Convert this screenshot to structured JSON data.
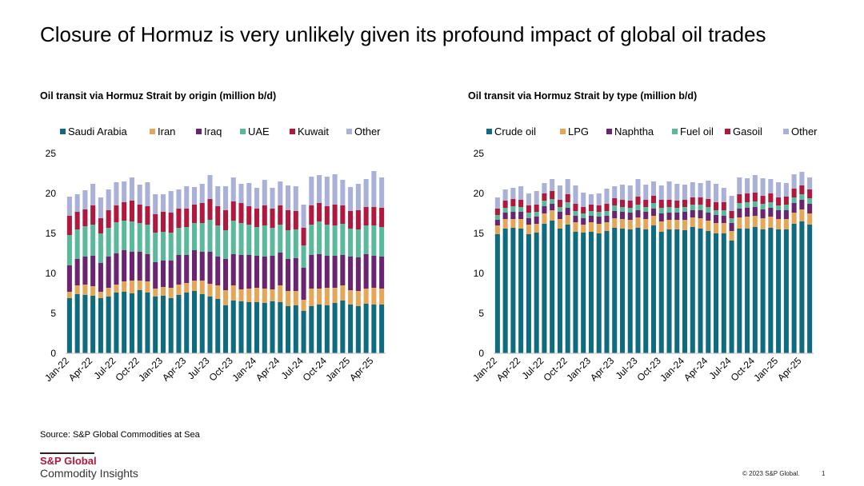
{
  "title": "Closure of Hormuz is very unlikely given its profound impact of global oil trades",
  "source": "Source: S&P Global Commodities at Sea",
  "logo": {
    "brand": "S&P Global",
    "sub": "Commodity Insights"
  },
  "copyright": "© 2023 S&P Global.",
  "page_number": "1",
  "chart_data": [
    {
      "type": "bar",
      "stacked": true,
      "title": "Oil transit via Hormuz Strait by origin (million b/d)",
      "xlabel": "",
      "ylabel": "",
      "ylim": [
        0,
        25
      ],
      "yticks": [
        0,
        5,
        10,
        15,
        20,
        25
      ],
      "legend_position": "top",
      "categories": [
        "Jan-22",
        "Feb-22",
        "Mar-22",
        "Apr-22",
        "May-22",
        "Jun-22",
        "Jul-22",
        "Aug-22",
        "Sep-22",
        "Oct-22",
        "Nov-22",
        "Dec-22",
        "Jan-23",
        "Feb-23",
        "Mar-23",
        "Apr-23",
        "May-23",
        "Jun-23",
        "Jul-23",
        "Aug-23",
        "Sep-23",
        "Oct-23",
        "Nov-23",
        "Dec-23",
        "Jan-24",
        "Feb-24",
        "Mar-24",
        "Apr-24",
        "May-24",
        "Jun-24",
        "Jul-24",
        "Aug-24",
        "Sep-24",
        "Oct-24",
        "Nov-24",
        "Dec-24",
        "Jan-25",
        "Feb-25",
        "Mar-25",
        "Apr-25",
        "May-25"
      ],
      "tick_labels": [
        "Jan-22",
        "Apr-22",
        "Jul-22",
        "Oct-22",
        "Jan-23",
        "Apr-23",
        "Jul-23",
        "Oct-23",
        "Jan-24",
        "Apr-24",
        "Jul-24",
        "Oct-24",
        "Jan-25",
        "Apr-25"
      ],
      "series": [
        {
          "name": "Saudi Arabia",
          "color": "#0f6b80",
          "values": [
            6.9,
            7.4,
            7.3,
            7.2,
            6.9,
            7.1,
            7.6,
            7.7,
            7.5,
            7.9,
            7.6,
            7.1,
            7.2,
            6.9,
            7.3,
            7.6,
            7.8,
            7.4,
            7.1,
            6.8,
            6.0,
            6.6,
            6.5,
            6.4,
            6.4,
            6.3,
            6.5,
            6.4,
            5.9,
            6.0,
            5.3,
            5.9,
            6.1,
            6.0,
            6.3,
            6.6,
            6.1,
            5.9,
            6.2,
            6.1,
            6.1
          ]
        },
        {
          "name": "Iran",
          "color": "#e5a757",
          "values": [
            0.8,
            1.1,
            1.3,
            1.2,
            0.8,
            1.1,
            1.0,
            1.3,
            1.6,
            1.2,
            1.4,
            1.0,
            1.1,
            1.3,
            1.3,
            1.2,
            1.3,
            1.7,
            1.6,
            1.7,
            1.9,
            1.9,
            1.5,
            1.7,
            1.8,
            1.8,
            1.5,
            2.1,
            1.9,
            1.8,
            1.4,
            2.2,
            2.0,
            2.2,
            1.9,
            1.9,
            1.8,
            1.9,
            1.9,
            2.1,
            2.0
          ]
        },
        {
          "name": "Iraq",
          "color": "#6b2471",
          "values": [
            3.3,
            3.3,
            3.5,
            3.8,
            3.6,
            3.9,
            3.9,
            3.9,
            3.6,
            3.6,
            3.4,
            3.3,
            3.3,
            3.4,
            3.7,
            3.5,
            3.8,
            3.6,
            4.0,
            3.6,
            3.9,
            3.9,
            4.3,
            4.2,
            4.0,
            4.0,
            4.2,
            4.1,
            4.0,
            4.1,
            4.0,
            4.2,
            4.3,
            4.0,
            4.0,
            3.8,
            4.2,
            4.2,
            4.3,
            4.0,
            4.0
          ]
        },
        {
          "name": "UAE",
          "color": "#5ab99a",
          "values": [
            3.8,
            3.7,
            3.8,
            3.9,
            3.7,
            3.6,
            3.9,
            3.7,
            3.8,
            3.6,
            3.7,
            3.7,
            3.6,
            3.5,
            3.4,
            3.5,
            3.4,
            3.6,
            4.0,
            3.9,
            3.6,
            4.2,
            4.0,
            3.8,
            3.6,
            3.9,
            3.5,
            3.5,
            3.6,
            3.6,
            2.8,
            3.8,
            4.1,
            3.9,
            3.8,
            3.9,
            3.5,
            3.5,
            3.6,
            3.8,
            3.7
          ]
        },
        {
          "name": "Kuwait",
          "color": "#b0183d",
          "values": [
            2.4,
            2.2,
            2.1,
            2.4,
            1.9,
            2.2,
            2.1,
            2.3,
            2.6,
            2.3,
            2.3,
            2.3,
            2.5,
            2.5,
            2.4,
            2.3,
            2.3,
            2.5,
            2.6,
            2.4,
            2.5,
            2.4,
            2.5,
            2.3,
            2.3,
            2.5,
            2.4,
            2.4,
            2.5,
            2.3,
            2.2,
            2.4,
            2.3,
            2.3,
            2.6,
            2.3,
            2.2,
            2.4,
            2.3,
            2.3,
            2.4
          ]
        },
        {
          "name": "Other",
          "color": "#a9b1d8",
          "values": [
            2.4,
            2.2,
            2.4,
            2.7,
            2.6,
            2.6,
            2.9,
            2.6,
            2.9,
            2.5,
            3.0,
            2.5,
            2.2,
            2.7,
            2.4,
            2.8,
            2.2,
            2.4,
            3.0,
            2.5,
            3.0,
            3.0,
            2.4,
            2.9,
            2.6,
            3.2,
            2.6,
            3.0,
            3.1,
            3.1,
            2.9,
            3.6,
            3.5,
            3.7,
            3.8,
            3.2,
            3.0,
            3.3,
            3.5,
            4.5,
            3.8
          ]
        }
      ]
    },
    {
      "type": "bar",
      "stacked": true,
      "title": "Oil transit via Hormuz Strait by type (million b/d)",
      "xlabel": "",
      "ylabel": "",
      "ylim": [
        0,
        25
      ],
      "yticks": [
        0,
        5,
        10,
        15,
        20,
        25
      ],
      "legend_position": "top",
      "categories": [
        "Jan-22",
        "Feb-22",
        "Mar-22",
        "Apr-22",
        "May-22",
        "Jun-22",
        "Jul-22",
        "Aug-22",
        "Sep-22",
        "Oct-22",
        "Nov-22",
        "Dec-22",
        "Jan-23",
        "Feb-23",
        "Mar-23",
        "Apr-23",
        "May-23",
        "Jun-23",
        "Jul-23",
        "Aug-23",
        "Sep-23",
        "Oct-23",
        "Nov-23",
        "Dec-23",
        "Jan-24",
        "Feb-24",
        "Mar-24",
        "Apr-24",
        "May-24",
        "Jun-24",
        "Jul-24",
        "Aug-24",
        "Sep-24",
        "Oct-24",
        "Nov-24",
        "Dec-24",
        "Jan-25",
        "Feb-25",
        "Mar-25",
        "Apr-25",
        "May-25"
      ],
      "tick_labels": [
        "Jan-22",
        "Apr-22",
        "Jul-22",
        "Oct-22",
        "Jan-23",
        "Apr-23",
        "Jul-23",
        "Oct-23",
        "Jan-24",
        "Apr-24",
        "Jul-24",
        "Oct-24",
        "Jan-25",
        "Apr-25"
      ],
      "series": [
        {
          "name": "Crude oil",
          "color": "#0f6b80",
          "values": [
            14.9,
            15.6,
            15.7,
            15.6,
            14.9,
            15.1,
            16.2,
            16.6,
            15.6,
            16.1,
            15.2,
            15.1,
            15.2,
            15.0,
            15.3,
            15.7,
            15.6,
            15.5,
            15.7,
            15.5,
            16.0,
            15.2,
            15.5,
            15.5,
            15.4,
            15.8,
            15.6,
            15.3,
            15.0,
            15.0,
            14.1,
            15.6,
            15.6,
            15.8,
            15.5,
            15.7,
            15.5,
            15.5,
            16.2,
            16.5,
            16.1
          ]
        },
        {
          "name": "LPG",
          "color": "#e5a757",
          "values": [
            1.1,
            1.2,
            1.1,
            1.2,
            1.2,
            1.1,
            1.3,
            1.3,
            1.2,
            1.2,
            1.2,
            1.0,
            1.2,
            1.2,
            1.1,
            1.2,
            1.2,
            1.2,
            1.3,
            1.3,
            1.2,
            1.3,
            1.2,
            1.2,
            1.3,
            1.2,
            1.3,
            1.3,
            1.3,
            1.3,
            1.2,
            1.4,
            1.5,
            1.4,
            1.4,
            1.4,
            1.3,
            1.3,
            1.4,
            1.5,
            1.4
          ]
        },
        {
          "name": "Naphtha",
          "color": "#6b2471",
          "values": [
            0.7,
            0.8,
            0.9,
            0.9,
            0.8,
            0.9,
            0.9,
            0.8,
            0.9,
            0.9,
            0.8,
            0.8,
            0.8,
            0.9,
            0.8,
            0.9,
            0.9,
            0.9,
            0.9,
            0.9,
            0.9,
            1.0,
            0.9,
            0.9,
            1.0,
            0.9,
            1.0,
            1.0,
            1.0,
            0.9,
            1.0,
            1.1,
            1.1,
            1.1,
            1.1,
            1.1,
            1.1,
            1.1,
            1.2,
            1.2,
            1.2
          ]
        },
        {
          "name": "Fuel oil",
          "color": "#5ab99a",
          "values": [
            0.6,
            0.6,
            0.7,
            0.6,
            0.7,
            0.6,
            0.7,
            0.6,
            0.6,
            0.7,
            0.6,
            0.6,
            0.6,
            0.6,
            0.6,
            0.7,
            0.6,
            0.6,
            0.7,
            0.6,
            0.7,
            0.7,
            0.7,
            0.6,
            0.6,
            0.7,
            0.7,
            0.7,
            0.6,
            0.7,
            0.6,
            0.7,
            0.7,
            0.7,
            0.7,
            0.7,
            0.6,
            0.7,
            0.7,
            0.7,
            0.7
          ]
        },
        {
          "name": "Gasoil",
          "color": "#b0183d",
          "values": [
            0.8,
            0.9,
            0.9,
            0.9,
            0.9,
            0.9,
            0.9,
            1.0,
            0.9,
            1.0,
            0.9,
            0.8,
            0.8,
            0.8,
            0.9,
            0.9,
            0.9,
            0.9,
            1.0,
            0.9,
            0.9,
            1.0,
            0.9,
            0.9,
            0.9,
            0.9,
            0.9,
            1.0,
            1.0,
            1.0,
            0.9,
            1.1,
            1.1,
            1.1,
            1.0,
            1.1,
            1.0,
            1.0,
            1.1,
            1.1,
            1.1
          ]
        },
        {
          "name": "Other",
          "color": "#a9b1d8",
          "values": [
            1.4,
            1.4,
            1.4,
            1.7,
            1.5,
            1.7,
            1.3,
            1.5,
            1.8,
            1.9,
            2.3,
            1.8,
            1.3,
            1.5,
            1.9,
            1.5,
            1.9,
            1.9,
            2.2,
            1.9,
            1.8,
            1.8,
            2.3,
            2.1,
            1.9,
            1.9,
            1.8,
            2.3,
            2.3,
            1.8,
            1.9,
            2.1,
            1.9,
            2.2,
            2.2,
            1.8,
            1.9,
            1.7,
            1.8,
            1.7,
            1.5
          ]
        }
      ]
    }
  ]
}
